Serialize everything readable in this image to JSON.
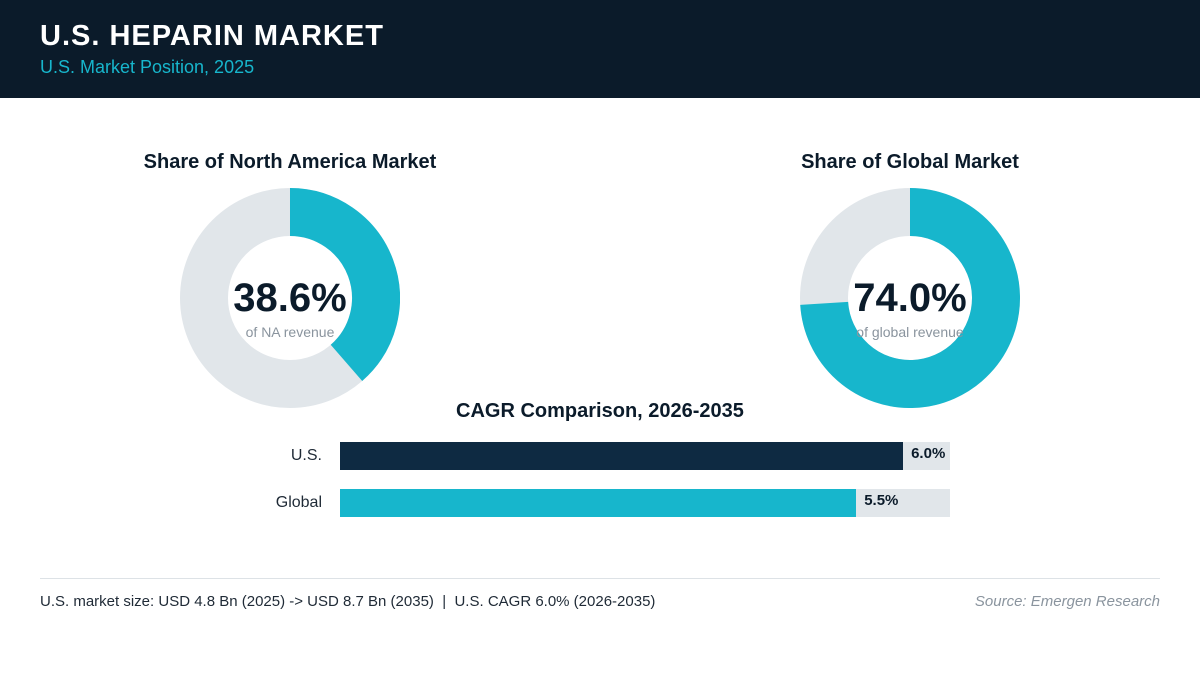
{
  "header": {
    "title": "U.S. HEPARIN MARKET",
    "subtitle": "U.S. Market Position, 2025"
  },
  "colors": {
    "header_bg": "#0b1b2a",
    "accent": "#17b6cc",
    "navy": "#0e2a42",
    "track": "#e1e6ea"
  },
  "chart_data": [
    {
      "type": "pie",
      "title": "Share of North America Market",
      "value": 38.6,
      "value_label": "38.6%",
      "caption": "of NA revenue"
    },
    {
      "type": "pie",
      "title": "Share of Global Market",
      "value": 74.0,
      "value_label": "74.0%",
      "caption": "of global revenue"
    },
    {
      "type": "bar",
      "title": "CAGR Comparison, 2026-2035",
      "categories": [
        "U.S.",
        "Global"
      ],
      "values": [
        6.0,
        5.5
      ],
      "value_labels": [
        "6.0%",
        "5.5%"
      ],
      "xlim": [
        0,
        6.5
      ]
    }
  ],
  "footer": {
    "note": "U.S. market size: USD 4.8 Bn (2025) -> USD 8.7 Bn (2035)  |  U.S. CAGR 6.0% (2026-2035)",
    "source": "Source: Emergen Research"
  }
}
